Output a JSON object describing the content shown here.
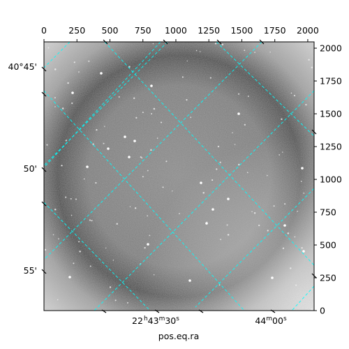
{
  "chart_data": {
    "type": "image",
    "xlabel": "pos.eq.ra",
    "ylabel": "",
    "pixel_axes": {
      "xlim": [
        0,
        2048
      ],
      "ylim": [
        0,
        2048
      ],
      "x_ticks": [
        0,
        250,
        500,
        750,
        1000,
        1250,
        1500,
        1750,
        2000
      ],
      "y_ticks": [
        0,
        250,
        500,
        750,
        1000,
        1250,
        1500,
        1750,
        2000
      ]
    },
    "world_axes": {
      "ra_tick_labels": [
        {
          "h": "22",
          "m": "43",
          "s": "30"
        },
        {
          "h": "",
          "m": "44",
          "s": "00"
        }
      ],
      "dec_tick_labels": [
        "40°45'",
        "50'",
        "55'"
      ]
    },
    "grid": true,
    "grid_color": "#00ffff",
    "image_colormap": "gray"
  },
  "colors": {
    "background": "#ffffff",
    "frame": "#000000",
    "grid": "#00ffff"
  }
}
